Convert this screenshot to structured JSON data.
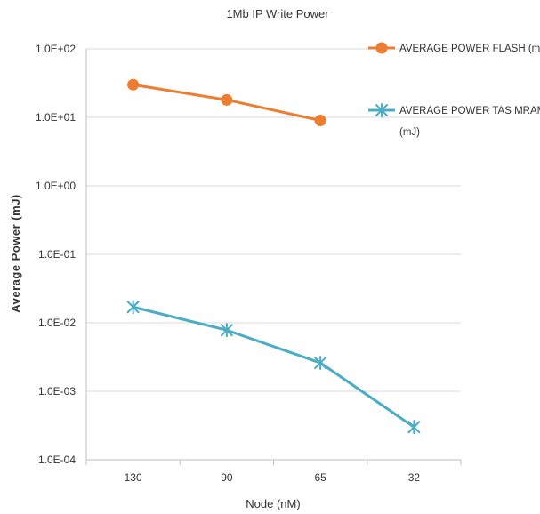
{
  "chart_data": {
    "type": "line",
    "title": "1Mb IP Write Power",
    "xlabel": "Node (nM)",
    "ylabel": "Average Power (mJ)",
    "categories": [
      "130",
      "90",
      "65",
      "32"
    ],
    "y_scale": "log",
    "ylim": [
      0.0001,
      100
    ],
    "y_ticks": [
      {
        "value": 100,
        "label": "1.0E+02"
      },
      {
        "value": 10,
        "label": "1.0E+01"
      },
      {
        "value": 1,
        "label": "1.0E+00"
      },
      {
        "value": 0.1,
        "label": "1.0E-01"
      },
      {
        "value": 0.01,
        "label": "1.0E-02"
      },
      {
        "value": 0.001,
        "label": "1.0E-03"
      },
      {
        "value": 0.0001,
        "label": "1.0E-04"
      }
    ],
    "grid": true,
    "legend_position": "top-right",
    "series": [
      {
        "name": "AVERAGE POWER FLASH (mJ)",
        "legend_lines": [
          "AVERAGE POWER FLASH (mJ)"
        ],
        "color": "#ED7D31",
        "marker": "circle",
        "values": [
          30,
          18,
          9,
          null
        ]
      },
      {
        "name": "AVERAGE POWER TAS MRAM (mJ)",
        "legend_lines": [
          "AVERAGE POWER TAS MRAM",
          "(mJ)"
        ],
        "color": "#4BACC6",
        "marker": "asterisk",
        "values": [
          0.017,
          0.0078,
          0.0026,
          0.0003
        ]
      }
    ]
  }
}
